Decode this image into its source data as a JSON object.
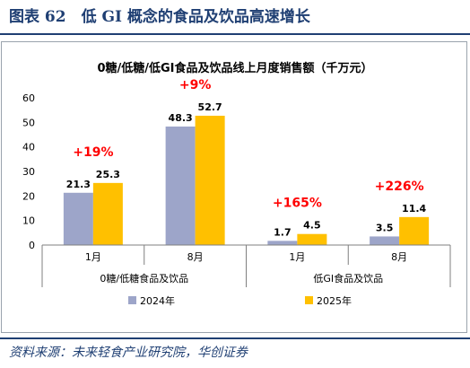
{
  "figure": {
    "title": "图表 62　低 GI 概念的食品及饮品高速增长",
    "source": "资料来源：未来轻食产业研究院，华创证券"
  },
  "colors": {
    "series_2024": "#9da5c9",
    "series_2025": "#ffc000",
    "growth_label": "#ff0000",
    "title_blue": "#1f3f73"
  },
  "chart_data": {
    "type": "bar",
    "title": "0糖/低糖/低GI食品及饮品线上月度销售额（千万元）",
    "categories": [
      "1月",
      "8月",
      "1月",
      "8月"
    ],
    "groups": [
      {
        "label": "0糖/低糖食品及饮品",
        "categories": [
          "1月",
          "8月"
        ]
      },
      {
        "label": "低GI食品及饮品",
        "categories": [
          "1月",
          "8月"
        ]
      }
    ],
    "series": [
      {
        "name": "2024年",
        "values": [
          21.3,
          48.3,
          1.7,
          3.5
        ]
      },
      {
        "name": "2025年",
        "values": [
          25.3,
          52.7,
          4.5,
          11.4
        ]
      }
    ],
    "value_labels": [
      [
        "21.3",
        "48.3",
        "1.7",
        "3.5"
      ],
      [
        "25.3",
        "52.7",
        "4.5",
        "11.4"
      ]
    ],
    "growth": [
      "+19%",
      "+9%",
      "+165%",
      "+226%"
    ],
    "ylim": [
      0,
      60
    ],
    "yticks": [
      "0",
      "10",
      "20",
      "30",
      "40",
      "50",
      "60"
    ],
    "grid": false,
    "legend_position": "bottom"
  }
}
